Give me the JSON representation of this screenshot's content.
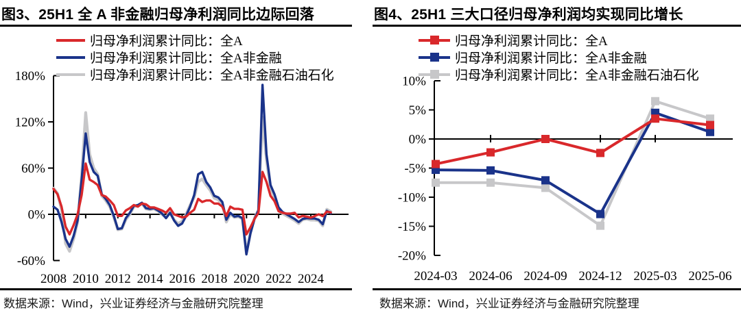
{
  "page": {
    "background": "#ffffff",
    "axis_color": "#000000"
  },
  "footer": {
    "source_label": "数据来源：Wind，兴业证券经济与金融研究院整理"
  },
  "chart_data": [
    {
      "type": "line",
      "title": "图3、25H1 全 A 非金融归母净利润同比边际回落",
      "source": "数据来源：Wind，兴业证券经济与金融研究院整理",
      "x_unit": "quarter",
      "x_start": "2008Q1",
      "x_end": "2025Q2",
      "xticks": [
        "2008",
        "2010",
        "2012",
        "2014",
        "2016",
        "2018",
        "2020",
        "2022",
        "2024"
      ],
      "yticks": [
        "180%",
        "120%",
        "60%",
        "0%",
        "-60%"
      ],
      "ytick_values": [
        180,
        120,
        60,
        0,
        -60
      ],
      "ylim": [
        -60,
        180
      ],
      "grid": false,
      "legend_position": "top",
      "series": [
        {
          "name": "归母净利润累计同比：全A",
          "color": "#d9282b",
          "values": [
            33,
            26,
            10,
            -16,
            -26,
            -14,
            0,
            25,
            66,
            45,
            42,
            38,
            25,
            23,
            18,
            12,
            -2,
            -2,
            5,
            8,
            12,
            10,
            14,
            13,
            9,
            9,
            7,
            5,
            2,
            8,
            0,
            -2,
            -4,
            -3,
            2,
            6,
            20,
            16,
            18,
            18,
            14,
            14,
            10,
            -2,
            10,
            7,
            7,
            6,
            -26,
            -17,
            -6,
            2,
            55,
            42,
            24,
            17,
            4,
            2,
            1,
            1,
            2,
            -4,
            -2,
            -3,
            -4.3,
            -2.3,
            0,
            -2.4,
            3.5,
            2.4
          ]
        },
        {
          "name": "归母净利润累计同比：全A非金融",
          "color": "#1a338a",
          "values": [
            10,
            6,
            -10,
            -32,
            -42,
            -28,
            -8,
            45,
            105,
            68,
            55,
            50,
            26,
            20,
            12,
            -2,
            -19,
            -18,
            -5,
            2,
            11,
            12,
            15,
            8,
            7,
            8,
            5,
            1,
            -5,
            2,
            -8,
            -15,
            -12,
            -2,
            10,
            25,
            52,
            55,
            42,
            35,
            24,
            22,
            16,
            -7,
            2,
            -3,
            -2,
            -5,
            -52,
            -25,
            -6,
            5,
            168,
            78,
            38,
            26,
            9,
            3,
            0,
            -3,
            -6,
            -10,
            -6,
            -5,
            -5.3,
            -5.4,
            -7.1,
            -12.9,
            4.5,
            1.2
          ]
        },
        {
          "name": "归母净利润累计同比：全A非金融石油石化",
          "color": "#c7c7c9",
          "values": [
            34,
            27,
            6,
            -38,
            -48,
            -32,
            -10,
            50,
            132,
            78,
            60,
            52,
            24,
            18,
            10,
            -4,
            -20,
            -19,
            -7,
            0,
            10,
            11,
            14,
            7,
            6,
            7,
            4,
            0,
            -4,
            3,
            -7,
            -12,
            -9,
            0,
            12,
            22,
            42,
            46,
            38,
            31,
            21,
            19,
            13,
            -10,
            0,
            -4,
            -3,
            -6,
            -50,
            -24,
            -5,
            6,
            126,
            70,
            34,
            22,
            7,
            1,
            -2,
            -5,
            -8,
            -12,
            -7,
            -6,
            -7.5,
            -7.5,
            -8.4,
            -14.9,
            6.5,
            3.5
          ]
        }
      ]
    },
    {
      "type": "line",
      "marker": "square",
      "title": "图4、25H1 三大口径归母净利润均实现同比增长",
      "source": "数据来源：Wind，兴业证券经济与金融研究院整理",
      "categories": [
        "2024-03",
        "2024-06",
        "2024-09",
        "2024-12",
        "2025-03",
        "2025-06"
      ],
      "yticks": [
        "10%",
        "5%",
        "0%",
        "-5%",
        "-10%",
        "-15%",
        "-20%"
      ],
      "ytick_values": [
        10,
        5,
        0,
        -5,
        -10,
        -15,
        -20
      ],
      "ylim": [
        -20,
        10
      ],
      "grid": false,
      "legend_position": "top",
      "series": [
        {
          "name": "归母净利润累计同比：全A",
          "color": "#d9282b",
          "values": [
            -4.3,
            -2.3,
            0.0,
            -2.4,
            3.5,
            2.4
          ]
        },
        {
          "name": "归母净利润累计同比：全A非金融",
          "color": "#1a338a",
          "values": [
            -5.3,
            -5.4,
            -7.1,
            -12.9,
            4.5,
            1.2
          ]
        },
        {
          "name": "归母净利润累计同比：全A非金融石油石化",
          "color": "#c7c7c9",
          "values": [
            -7.5,
            -7.5,
            -8.4,
            -14.9,
            6.5,
            3.5
          ]
        }
      ]
    }
  ]
}
